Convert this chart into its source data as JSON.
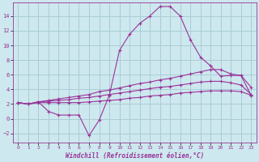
{
  "background_color": "#cde8ee",
  "grid_color": "#aacdd6",
  "line_color": "#993399",
  "marker": "+",
  "xlabel": "Windchill (Refroidissement éolien,°C)",
  "xlim": [
    -0.5,
    23.5
  ],
  "ylim": [
    -3.2,
    15.8
  ],
  "xticks": [
    0,
    1,
    2,
    3,
    4,
    5,
    6,
    7,
    8,
    9,
    10,
    11,
    12,
    13,
    14,
    15,
    16,
    17,
    18,
    19,
    20,
    21,
    22,
    23
  ],
  "yticks": [
    -2,
    0,
    2,
    4,
    6,
    8,
    10,
    12,
    14
  ],
  "series": [
    {
      "x": [
        0,
        1,
        2,
        3,
        4,
        5,
        6,
        7,
        8,
        9,
        10,
        11,
        12,
        13,
        14,
        15,
        16,
        17,
        18,
        19,
        20,
        21,
        22,
        23
      ],
      "y": [
        2.2,
        2.0,
        2.3,
        1.0,
        0.5,
        0.5,
        0.5,
        -2.3,
        -0.2,
        3.2,
        9.3,
        11.5,
        13.0,
        14.0,
        15.3,
        15.3,
        14.0,
        10.8,
        8.4,
        7.2,
        5.8,
        5.9,
        5.9,
        3.2
      ]
    },
    {
      "x": [
        0,
        1,
        2,
        3,
        4,
        5,
        6,
        7,
        8,
        9,
        10,
        11,
        12,
        13,
        14,
        15,
        16,
        17,
        18,
        19,
        20,
        21,
        22,
        23
      ],
      "y": [
        2.2,
        2.0,
        2.3,
        2.5,
        2.7,
        2.9,
        3.1,
        3.3,
        3.7,
        3.9,
        4.2,
        4.5,
        4.8,
        5.0,
        5.3,
        5.5,
        5.8,
        6.1,
        6.4,
        6.7,
        6.7,
        6.1,
        5.9,
        4.3
      ]
    },
    {
      "x": [
        0,
        1,
        2,
        3,
        4,
        5,
        6,
        7,
        8,
        9,
        10,
        11,
        12,
        13,
        14,
        15,
        16,
        17,
        18,
        19,
        20,
        21,
        22,
        23
      ],
      "y": [
        2.2,
        2.0,
        2.3,
        2.4,
        2.5,
        2.6,
        2.8,
        2.9,
        3.1,
        3.3,
        3.5,
        3.7,
        3.9,
        4.1,
        4.3,
        4.4,
        4.6,
        4.8,
        5.0,
        5.1,
        5.1,
        4.9,
        4.6,
        3.3
      ]
    },
    {
      "x": [
        0,
        1,
        2,
        3,
        4,
        5,
        6,
        7,
        8,
        9,
        10,
        11,
        12,
        13,
        14,
        15,
        16,
        17,
        18,
        19,
        20,
        21,
        22,
        23
      ],
      "y": [
        2.2,
        2.0,
        2.2,
        2.2,
        2.2,
        2.2,
        2.2,
        2.3,
        2.4,
        2.5,
        2.6,
        2.8,
        2.9,
        3.1,
        3.2,
        3.3,
        3.5,
        3.6,
        3.7,
        3.8,
        3.8,
        3.8,
        3.7,
        3.2
      ]
    }
  ]
}
